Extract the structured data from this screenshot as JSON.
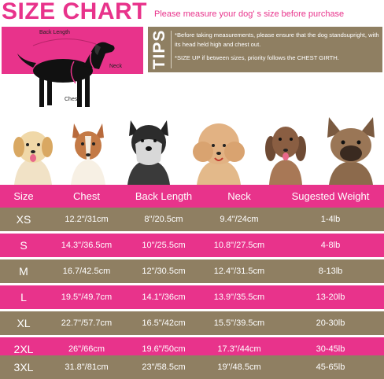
{
  "header": {
    "title": "SIZE CHART",
    "subtitle": "Please measure your dog' s size before purchase"
  },
  "diagram": {
    "label_back": "Back Length",
    "label_neck": "Neck",
    "label_chest": "Chest"
  },
  "tips": {
    "word": "TIPS",
    "line1": "*Before taking measurements, please ensure that the dog standsupright, with its head held high and chest out.",
    "line2": "*SIZE UP if between sizes, priority follows the CHEST GIRTH."
  },
  "colors": {
    "pink": "#e8338b",
    "brown": "#8f7f62",
    "white": "#ffffff"
  },
  "table": {
    "columns": [
      "Size",
      "Chest",
      "Back Length",
      "Neck",
      "Sugested Weight"
    ],
    "rows": [
      {
        "size": "XS",
        "chest": "12.2\"/31cm",
        "back": "8\"/20.5cm",
        "neck": "9.4\"/24cm",
        "weight": "1-4lb"
      },
      {
        "size": "S",
        "chest": "14.3\"/36.5cm",
        "back": "10\"/25.5cm",
        "neck": "10.8\"/27.5cm",
        "weight": "4-8lb"
      },
      {
        "size": "M",
        "chest": "16.7/42.5cm",
        "back": "12\"/30.5cm",
        "neck": "12.4\"/31.5cm",
        "weight": "8-13lb"
      },
      {
        "size": "L",
        "chest": "19.5\"/49.7cm",
        "back": "14.1\"/36cm",
        "neck": "13.9\"/35.5cm",
        "weight": "13-20lb"
      },
      {
        "size": "XL",
        "chest": "22.7\"/57.7cm",
        "back": "16.5\"/42cm",
        "neck": "15.5\"/39.5cm",
        "weight": "20-30lb"
      },
      {
        "size": "2XL",
        "chest": "26\"/66cm",
        "back": "19.6\"/50cm",
        "neck": "17.3\"/44cm",
        "weight": "30-45lb"
      },
      {
        "size": "3XL",
        "chest": "31.8\"/81cm",
        "back": "23\"/58.5cm",
        "neck": "19\"/48.5cm",
        "weight": "45-65lb"
      }
    ]
  }
}
